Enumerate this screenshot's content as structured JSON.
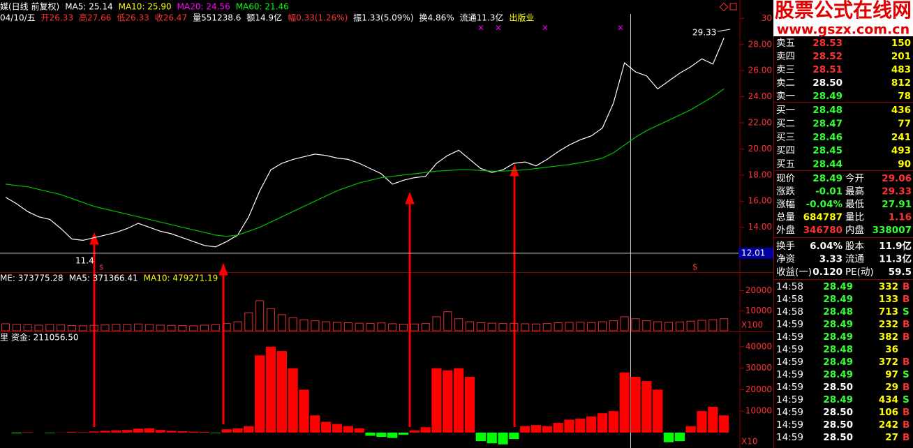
{
  "logo": {
    "name": "股票公式在线网",
    "url": "www.gszx.com.cn"
  },
  "header": {
    "line1": [
      {
        "text": "媒(日线 前复权)",
        "color": "#ffffff"
      },
      {
        "text": "MA5: 25.14",
        "color": "#ffffff"
      },
      {
        "text": "MA10: 25.90",
        "color": "#ffff00"
      },
      {
        "text": "MA20: 24.56",
        "color": "#ff00ff"
      },
      {
        "text": "MA60: 21.46",
        "color": "#00ff00"
      }
    ],
    "line2": [
      {
        "text": "04/10/五",
        "color": "#ffffff"
      },
      {
        "text": "开26.33",
        "color": "#ff3333"
      },
      {
        "text": "高27.66",
        "color": "#ff3333"
      },
      {
        "text": "低26.33",
        "color": "#ff3333"
      },
      {
        "text": "收26.47",
        "color": "#ff3333"
      },
      {
        "text": "量551238.6",
        "color": "#ffffff"
      },
      {
        "text": "额14.9亿",
        "color": "#ffffff"
      },
      {
        "text": "幅0.33(1.26%)",
        "color": "#ff3333"
      },
      {
        "text": "振1.33(5.09%)",
        "color": "#ffffff"
      },
      {
        "text": "换4.86%",
        "color": "#ffffff"
      },
      {
        "text": "流通11.3亿",
        "color": "#ffffff"
      },
      {
        "text": "出版业",
        "color": "#ffff00"
      }
    ]
  },
  "price_chart": {
    "ylim": [
      10.56,
      30.34
    ],
    "yticks": [
      30,
      {
        "value": 28,
        "label": "28.00"
      },
      {
        "value": 26,
        "label": "26.00"
      },
      {
        "value": 24,
        "label": "24.00"
      },
      {
        "value": 22,
        "label": "22.00"
      },
      {
        "value": 20,
        "label": "20.00"
      },
      {
        "value": 18,
        "label": "18.00"
      },
      {
        "value": 16,
        "label": "16.00"
      },
      {
        "value": 14,
        "label": "14.00"
      },
      {
        "value": 12,
        "label": "12.00"
      }
    ],
    "crosshair": 12.01,
    "annotations": [
      "29.33",
      "11.4"
    ],
    "signals": [
      "s",
      "$"
    ],
    "top_markers": [
      "×",
      "×",
      "×",
      "×"
    ],
    "close": {
      "color": "#ffffff",
      "values": [
        16.3,
        15.8,
        15.2,
        14.8,
        14.6,
        13.9,
        13.1,
        13.0,
        13.2,
        13.4,
        13.6,
        13.9,
        14.3,
        14.0,
        13.7,
        13.5,
        13.2,
        12.9,
        12.6,
        12.5,
        12.9,
        13.4,
        14.8,
        16.8,
        18.4,
        18.9,
        19.2,
        19.4,
        19.6,
        19.5,
        19.3,
        19.2,
        18.9,
        18.5,
        18.1,
        17.3,
        17.6,
        17.8,
        17.9,
        18.9,
        19.5,
        19.9,
        19.2,
        18.5,
        18.2,
        18.4,
        18.9,
        19.0,
        18.7,
        19.2,
        19.8,
        20.3,
        20.7,
        21.0,
        21.6,
        23.5,
        26.6,
        25.9,
        25.6,
        24.6,
        25.2,
        25.8,
        26.3,
        26.9,
        26.5,
        28.5
      ]
    },
    "ma60": {
      "color": "#00c000",
      "values": [
        17.3,
        17.2,
        17.1,
        16.9,
        16.7,
        16.5,
        16.2,
        15.9,
        15.6,
        15.4,
        15.2,
        15.0,
        14.8,
        14.6,
        14.4,
        14.2,
        14.0,
        13.8,
        13.6,
        13.4,
        13.3,
        13.4,
        13.7,
        14.0,
        14.4,
        14.8,
        15.2,
        15.6,
        16.0,
        16.4,
        16.8,
        17.1,
        17.4,
        17.6,
        17.8,
        17.9,
        18.0,
        18.1,
        18.2,
        18.3,
        18.35,
        18.4,
        18.4,
        18.35,
        18.3,
        18.3,
        18.35,
        18.4,
        18.5,
        18.6,
        18.7,
        18.8,
        18.95,
        19.1,
        19.3,
        19.7,
        20.3,
        20.9,
        21.4,
        21.8,
        22.2,
        22.6,
        23.0,
        23.5,
        24.0,
        24.6
      ]
    }
  },
  "volume_chart": {
    "legend": [
      {
        "text": "ME: 373775.28",
        "color": "#ffffff"
      },
      {
        "text": "MA5: 371366.41",
        "color": "#ffffff"
      },
      {
        "text": "MA10: 479271.19",
        "color": "#ffff00"
      }
    ],
    "ylim": [
      0,
      24000
    ],
    "yticks": [
      10000,
      20000
    ],
    "scale_label": "X100",
    "color": "#e03030",
    "values": [
      3500,
      3200,
      3000,
      2800,
      3100,
      2900,
      2600,
      2500,
      2700,
      2900,
      3200,
      3000,
      3400,
      3100,
      2800,
      2700,
      2600,
      2500,
      2800,
      3000,
      3600,
      4500,
      9000,
      15000,
      11000,
      8000,
      6500,
      5500,
      5000,
      4500,
      4200,
      4000,
      3800,
      3700,
      3900,
      3500,
      3300,
      3400,
      3600,
      7000,
      9500,
      6000,
      4500,
      4000,
      3800,
      3600,
      3700,
      3500,
      3400,
      3600,
      4000,
      4200,
      4300,
      4100,
      4500,
      5000,
      7000,
      6000,
      5000,
      4500,
      4200,
      4400,
      4800,
      5200,
      5500,
      6000
    ]
  },
  "fund_chart": {
    "legend": "里 资金: 211056.50",
    "ylim": [
      -7200,
      46800
    ],
    "yticks": [
      10000,
      20000,
      30000,
      40000
    ],
    "scale_label": "X10",
    "up_color": "#ff0000",
    "down_color": "#00ff00",
    "values": [
      0,
      -300,
      200,
      0,
      -200,
      100,
      300,
      200,
      500,
      800,
      1000,
      1200,
      1800,
      2000,
      1200,
      800,
      600,
      400,
      300,
      -200,
      1500,
      2000,
      3000,
      36000,
      40000,
      38000,
      30000,
      20000,
      8000,
      5000,
      4000,
      3000,
      2000,
      -1500,
      -2000,
      -2500,
      -1000,
      1000,
      2500,
      30000,
      29000,
      30000,
      26000,
      -4000,
      -5000,
      -5500,
      -3000,
      3000,
      3500,
      3000,
      4500,
      6000,
      6500,
      7500,
      9000,
      10000,
      28000,
      26000,
      24000,
      20000,
      -4500,
      -4000,
      3000,
      10000,
      12000,
      8000
    ]
  },
  "orderbook": {
    "sell": [
      {
        "label": "卖五",
        "price": "28.53",
        "volume": "150",
        "color": "#ff3333"
      },
      {
        "label": "卖四",
        "price": "28.52",
        "volume": "201",
        "color": "#ff3333"
      },
      {
        "label": "卖三",
        "price": "28.51",
        "volume": "483",
        "color": "#ff3333"
      },
      {
        "label": "卖二",
        "price": "28.50",
        "volume": "812",
        "color": "#ffffff"
      },
      {
        "label": "卖一",
        "price": "28.49",
        "volume": "78",
        "color": "#33ff33"
      }
    ],
    "buy": [
      {
        "label": "买一",
        "price": "28.48",
        "volume": "436",
        "color": "#33ff33"
      },
      {
        "label": "买二",
        "price": "28.47",
        "volume": "77",
        "color": "#33ff33"
      },
      {
        "label": "买三",
        "price": "28.46",
        "volume": "241",
        "color": "#33ff33"
      },
      {
        "label": "买四",
        "price": "28.45",
        "volume": "493",
        "color": "#33ff33"
      },
      {
        "label": "买五",
        "price": "28.44",
        "volume": "90",
        "color": "#33ff33"
      }
    ]
  },
  "stats": [
    {
      "label": "现价",
      "value": "28.49",
      "color": "#33ff33",
      "label2": "今开",
      "value2": "29.06",
      "color2": "#ff3333"
    },
    {
      "label": "涨跌",
      "value": "-0.01",
      "color": "#33ff33",
      "label2": "最高",
      "value2": "29.33",
      "color2": "#ff3333"
    },
    {
      "label": "涨幅",
      "value": "-0.04%",
      "color": "#33ff33",
      "label2": "最低",
      "value2": "27.91",
      "color2": "#33ff33"
    },
    {
      "label": "总量",
      "value": "684787",
      "color": "#ffff00",
      "label2": "量比",
      "value2": "1.16",
      "color2": "#ff3333"
    },
    {
      "label": "外盘",
      "value": "346780",
      "color": "#ff3333",
      "label2": "内盘",
      "value2": "338007",
      "color2": "#33ff33"
    },
    {
      "label": "换手",
      "value": "6.04%",
      "color": "#ffffff",
      "label2": "股本",
      "value2": "11.9亿",
      "color2": "#ffffff"
    },
    {
      "label": "净资",
      "value": "3.33",
      "color": "#ffffff",
      "label2": "流通",
      "value2": "11.3亿",
      "color2": "#ffffff"
    },
    {
      "label": "收益(一)",
      "value": "0.120",
      "color": "#ffffff",
      "label2": "PE(动)",
      "value2": "59.5",
      "color2": "#ffffff"
    }
  ],
  "ticks": [
    {
      "time": "14:58",
      "price": "28.49",
      "volume": "332",
      "side": "B",
      "color": "#33ff33"
    },
    {
      "time": "14:58",
      "price": "28.49",
      "volume": "133",
      "side": "B",
      "color": "#33ff33"
    },
    {
      "time": "14:58",
      "price": "28.48",
      "volume": "713",
      "side": "S",
      "color": "#33ff33"
    },
    {
      "time": "14:59",
      "price": "28.49",
      "volume": "232",
      "side": "B",
      "color": "#33ff33"
    },
    {
      "time": "14:59",
      "price": "28.49",
      "volume": "382",
      "side": "B",
      "color": "#33ff33"
    },
    {
      "time": "14:59",
      "price": "28.48",
      "volume": "36",
      "side": "",
      "color": "#33ff33"
    },
    {
      "time": "14:59",
      "price": "28.49",
      "volume": "372",
      "side": "B",
      "color": "#33ff33"
    },
    {
      "time": "14:59",
      "price": "28.49",
      "volume": "97",
      "side": "S",
      "color": "#33ff33"
    },
    {
      "time": "14:59",
      "price": "28.50",
      "volume": "29",
      "side": "B",
      "color": "#ffffff"
    },
    {
      "time": "14:59",
      "price": "28.49",
      "volume": "434",
      "side": "S",
      "color": "#33ff33"
    },
    {
      "time": "14:59",
      "price": "28.50",
      "volume": "106",
      "side": "B",
      "color": "#ffffff"
    },
    {
      "time": "14:59",
      "price": "28.50",
      "volume": "242",
      "side": "B",
      "color": "#ffffff"
    },
    {
      "time": "14:59",
      "price": "28.50",
      "volume": "27",
      "side": "B",
      "color": "#ffffff"
    }
  ]
}
